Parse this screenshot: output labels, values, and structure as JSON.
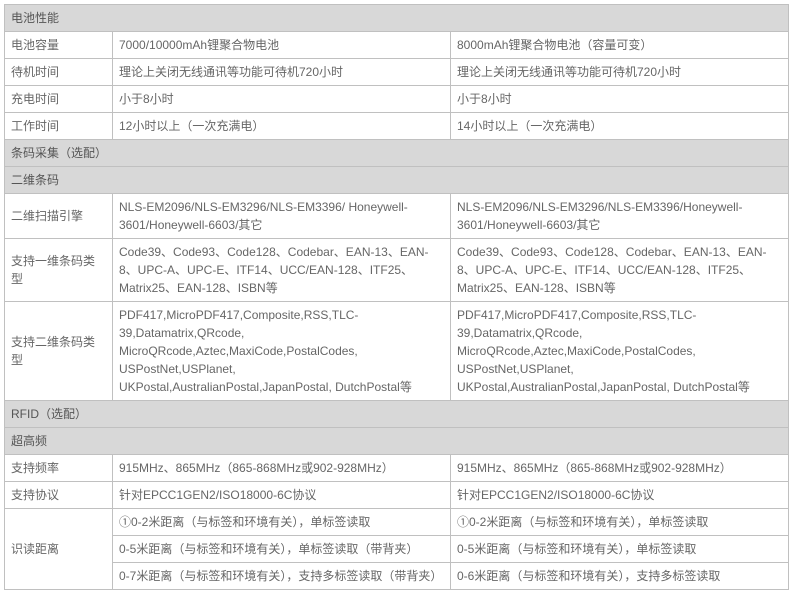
{
  "colors": {
    "border": "#c0c0c0",
    "header_bg": "#d8d8d8",
    "text": "#666"
  },
  "sections": {
    "battery": {
      "title": "电池性能",
      "rows": [
        {
          "label": "电池容量",
          "left": "7000/10000mAh锂聚合物电池",
          "right": "8000mAh锂聚合物电池（容量可变）"
        },
        {
          "label": "待机时间",
          "left": "理论上关闭无线通讯等功能可待机720小时",
          "right": "理论上关闭无线通讯等功能可待机720小时"
        },
        {
          "label": "充电时间",
          "left": "小于8小时",
          "right": "小于8小时"
        },
        {
          "label": "工作时间",
          "left": "12小时以上（一次充满电）",
          "right": "14小时以上（一次充满电）"
        }
      ]
    },
    "barcode": {
      "title": "条码采集（选配）",
      "sub_title": "二维条码",
      "rows": [
        {
          "label": "二维扫描引擎",
          "left": "NLS-EM2096/NLS-EM3296/NLS-EM3396/ Honeywell-3601/Honeywell-6603/其它",
          "right": "NLS-EM2096/NLS-EM3296/NLS-EM3396/Honeywell-3601/Honeywell-6603/其它"
        },
        {
          "label": "支持一维条码类型",
          "left": "Code39、Code93、Code128、Codebar、EAN-13、EAN-8、UPC-A、UPC-E、ITF14、UCC/EAN-128、ITF25、Matrix25、EAN-128、ISBN等",
          "right": "Code39、Code93、Code128、Codebar、EAN-13、EAN-8、UPC-A、UPC-E、ITF14、UCC/EAN-128、ITF25、Matrix25、EAN-128、ISBN等"
        },
        {
          "label": "支持二维条码类型",
          "left": "PDF417,MicroPDF417,Composite,RSS,TLC-39,Datamatrix,QRcode, MicroQRcode,Aztec,MaxiCode,PostalCodes, USPostNet,USPlanet, UKPostal,AustralianPostal,JapanPostal, DutchPostal等",
          "right": "PDF417,MicroPDF417,Composite,RSS,TLC-39,Datamatrix,QRcode, MicroQRcode,Aztec,MaxiCode,PostalCodes, USPostNet,USPlanet, UKPostal,AustralianPostal,JapanPostal, DutchPostal等"
        }
      ]
    },
    "rfid": {
      "title": "RFID（选配）",
      "sub_title": "超高频",
      "rows_simple": [
        {
          "label": "支持频率",
          "left": "915MHz、865MHz（865-868MHz或902-928MHz）",
          "right": "915MHz、865MHz（865-868MHz或902-928MHz）"
        },
        {
          "label": "支持协议",
          "left": "针对EPCC1GEN2/ISO18000-6C协议",
          "right": "针对EPCC1GEN2/ISO18000-6C协议"
        }
      ],
      "read_distance_label": "识读距离",
      "read_distance_rows": [
        {
          "left": "①0-2米距离（与标签和环境有关），单标签读取",
          "right": "①0-2米距离（与标签和环境有关），单标签读取"
        },
        {
          "left": "0-5米距离（与标签和环境有关），单标签读取（带背夹）",
          "right": "0-5米距离（与标签和环境有关），单标签读取"
        },
        {
          "left": "0-7米距离（与标签和环境有关），支持多标签读取（带背夹）",
          "right": "0-6米距离（与标签和环境有关），支持多标签读取"
        }
      ]
    }
  }
}
